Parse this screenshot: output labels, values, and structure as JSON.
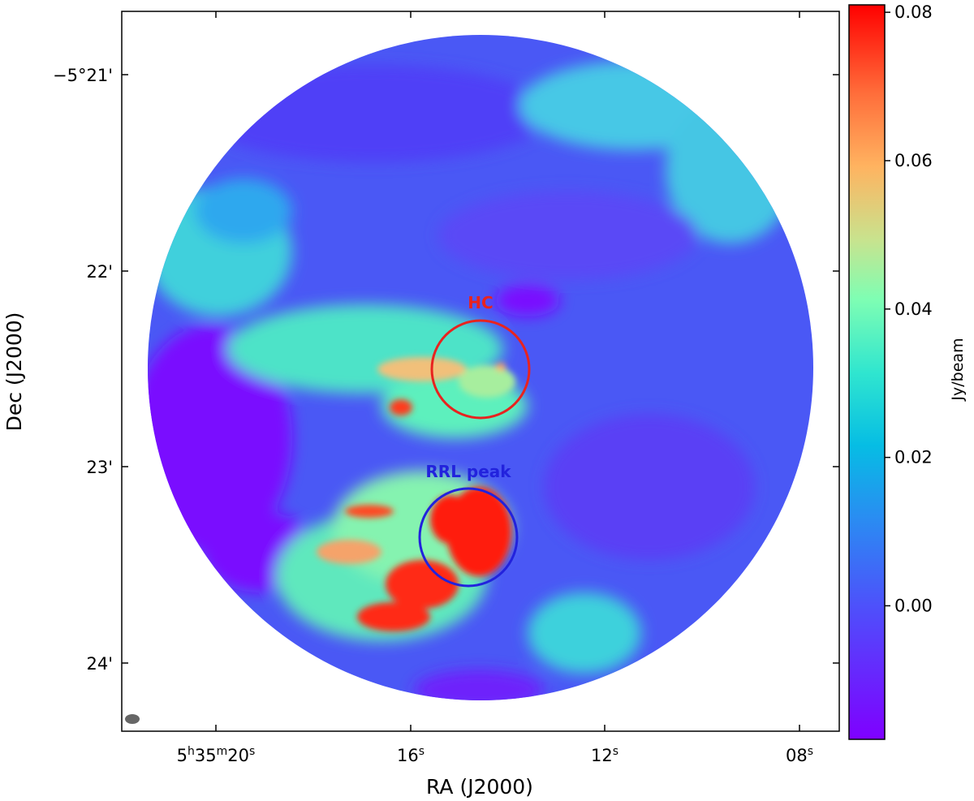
{
  "chart_data": {
    "type": "heatmap",
    "title": "",
    "xlabel": "RA (J2000)",
    "ylabel": "Dec (J2000)",
    "x_ticks": [
      {
        "parts": [
          {
            "t": "5"
          },
          {
            "t": "h",
            "sup": true
          },
          {
            "t": "35"
          },
          {
            "t": "m",
            "sup": true
          },
          {
            "t": "20"
          },
          {
            "t": "s",
            "sup": true
          }
        ]
      },
      {
        "parts": [
          {
            "t": "16"
          },
          {
            "t": "s",
            "sup": true
          }
        ]
      },
      {
        "parts": [
          {
            "t": "12"
          },
          {
            "t": "s",
            "sup": true
          }
        ]
      },
      {
        "parts": [
          {
            "t": "08"
          },
          {
            "t": "s",
            "sup": true
          }
        ]
      }
    ],
    "y_ticks": [
      "−5°21'",
      "22'",
      "23'",
      "24'"
    ],
    "colorbar": {
      "label": "Jy/beam",
      "ticks": [
        "0.08",
        "0.06",
        "0.04",
        "0.02",
        "0.00"
      ],
      "tick_values": [
        0.08,
        0.06,
        0.04,
        0.02,
        0.0
      ],
      "range": [
        -0.018,
        0.081
      ],
      "colormap": "rainbow"
    },
    "regions": [
      {
        "label": "HC",
        "color": "#e8231f",
        "dec_offset_arcmin": 1.5
      },
      {
        "label": "RRL peak",
        "color": "#2222dd",
        "dec_offset_arcmin": 2.3
      }
    ],
    "beam_color": "#666666"
  }
}
